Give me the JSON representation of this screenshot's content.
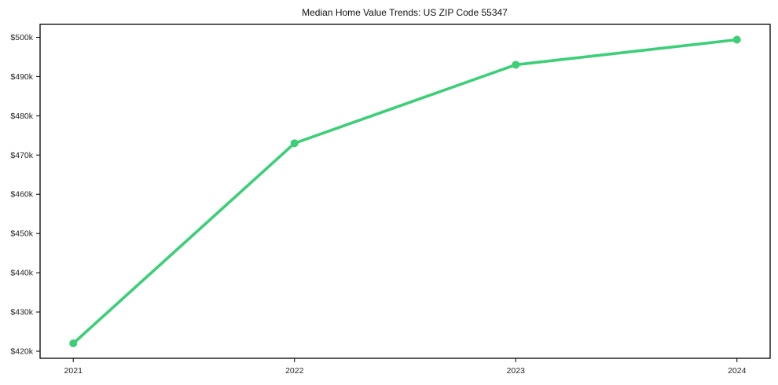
{
  "page": {
    "background": "#ffffff"
  },
  "chart_data": {
    "type": "line",
    "title": "Median Home Value Trends: US ZIP Code 55347",
    "x": [
      2021,
      2022,
      2023,
      2024
    ],
    "x_tick_labels": [
      "2021",
      "2022",
      "2023",
      "2024"
    ],
    "series": [
      {
        "name": "Median home value",
        "values": [
          422,
          473,
          493,
          499.4
        ],
        "unit": "thousand USD",
        "color": "#3bcf77",
        "line_width": 3.6,
        "marker": "circle",
        "marker_radius": 5
      }
    ],
    "xlabel": "",
    "ylabel": "",
    "y_ticks": [
      420,
      430,
      440,
      450,
      460,
      470,
      480,
      490,
      500
    ],
    "y_tick_labels": [
      "$420k",
      "$430k",
      "$440k",
      "$450k",
      "$460k",
      "$470k",
      "$480k",
      "$490k",
      "$500k"
    ],
    "xlim": [
      2020.85,
      2024.15
    ],
    "ylim": [
      418.2,
      503.3
    ],
    "grid": false,
    "legend": false,
    "axis_color": "#000000",
    "tick_label_color": "#262626",
    "title_color": "#111111",
    "plot_background": "#ffffff"
  }
}
